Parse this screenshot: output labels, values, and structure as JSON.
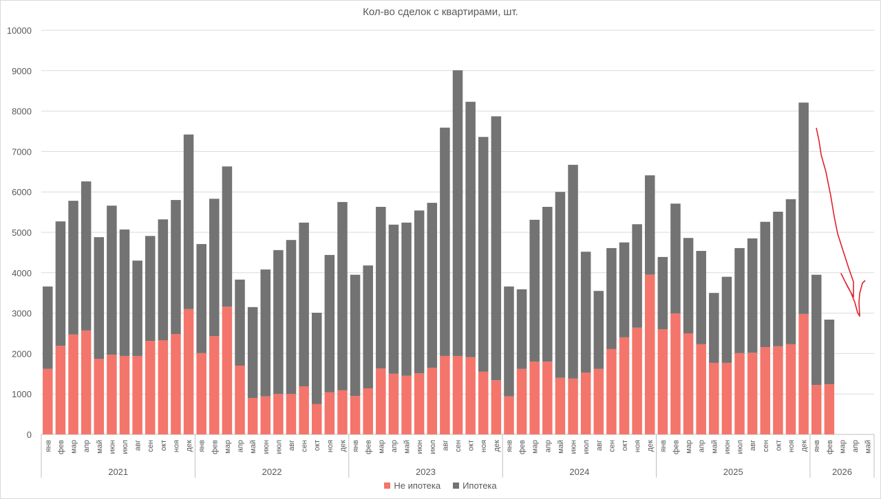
{
  "chart_data": {
    "type": "bar",
    "stacked": true,
    "title": "Кол-во сделок с квартирами, шт.",
    "xlabel": "",
    "ylabel": "",
    "ylim": [
      0,
      10000
    ],
    "yticks": [
      0,
      1000,
      2000,
      3000,
      4000,
      5000,
      6000,
      7000,
      8000,
      9000,
      10000
    ],
    "grid": true,
    "legend_position": "bottom",
    "years": [
      {
        "label": "2021",
        "months": [
          "янв",
          "фев",
          "мар",
          "апр",
          "май",
          "июн",
          "июл",
          "авг",
          "сен",
          "окт",
          "ноя",
          "дек"
        ]
      },
      {
        "label": "2022",
        "months": [
          "янв",
          "фев",
          "мар",
          "апр",
          "май",
          "июн",
          "июл",
          "авг",
          "сен",
          "окт",
          "ноя",
          "дек"
        ]
      },
      {
        "label": "2023",
        "months": [
          "янв",
          "фев",
          "мар",
          "апр",
          "май",
          "июн",
          "июл",
          "авг",
          "сен",
          "окт",
          "ноя",
          "дек"
        ]
      },
      {
        "label": "2024",
        "months": [
          "янв",
          "фев",
          "мар",
          "апр",
          "май",
          "июн",
          "июл",
          "авг",
          "сен",
          "окт",
          "ноя",
          "дек"
        ]
      },
      {
        "label": "2025",
        "months": [
          "янв",
          "фев",
          "мар",
          "апр",
          "май",
          "июн",
          "июл",
          "авг",
          "сен",
          "окт",
          "ноя",
          "дек"
        ]
      },
      {
        "label": "2026",
        "months": [
          "янв",
          "фев",
          "мар",
          "апр",
          "май"
        ]
      }
    ],
    "series": [
      {
        "name": "Не ипотека",
        "color": "#f4756b",
        "values": [
          1620,
          2190,
          2470,
          2570,
          1870,
          1970,
          1940,
          1940,
          2310,
          2330,
          2480,
          3100,
          2010,
          2430,
          3160,
          1700,
          900,
          940,
          1000,
          1000,
          1190,
          750,
          1040,
          1090,
          950,
          1140,
          1630,
          1500,
          1450,
          1510,
          1650,
          1940,
          1940,
          1910,
          1550,
          1340,
          940,
          1620,
          1800,
          1800,
          1400,
          1380,
          1530,
          1620,
          2110,
          2400,
          2640,
          3950,
          2600,
          2990,
          2500,
          2230,
          1770,
          1770,
          2010,
          2020,
          2160,
          2180,
          2230,
          2980,
          1220,
          1240,
          null,
          null,
          null
        ]
      },
      {
        "name": "Ипотека",
        "color": "#737373",
        "values": [
          2040,
          3080,
          3310,
          3690,
          3010,
          3690,
          3130,
          2360,
          2600,
          2990,
          3320,
          4320,
          2700,
          3400,
          3470,
          2130,
          2250,
          3140,
          3560,
          3810,
          4050,
          2260,
          3400,
          4660,
          3000,
          3040,
          4000,
          3690,
          3790,
          4030,
          4080,
          5650,
          7070,
          6320,
          5810,
          6530,
          2720,
          1970,
          3510,
          3830,
          4600,
          5290,
          2990,
          1930,
          2500,
          2350,
          2560,
          2460,
          1790,
          2720,
          2360,
          2310,
          1730,
          2130,
          2600,
          2830,
          3100,
          3330,
          3590,
          5230,
          2730,
          1600,
          null,
          null,
          null
        ]
      }
    ]
  }
}
